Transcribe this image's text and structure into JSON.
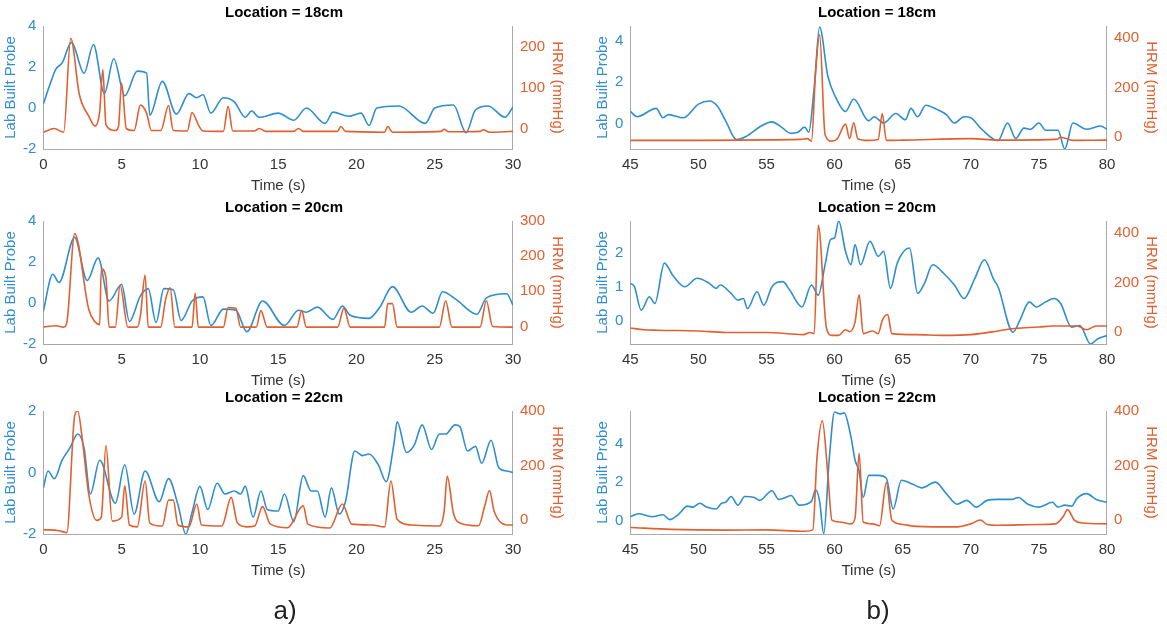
{
  "chart_data": [
    {
      "type": "line",
      "title": "Location = 18cm",
      "xlabel": "Time (s)",
      "ylabel": "Lab Built Probe",
      "y2label": "HRM (mmHg)",
      "xlim": [
        0,
        30
      ],
      "xticks": [
        0,
        5,
        10,
        15,
        20,
        25,
        30
      ],
      "ylim": [
        -2,
        4
      ],
      "yticks": [
        -2,
        0,
        2,
        4
      ],
      "y2lim": [
        -50,
        250
      ],
      "y2ticks": [
        0,
        100,
        200
      ],
      "legend": false,
      "grid": false,
      "series": [
        {
          "color": "#2e8ed0",
          "axis": "y",
          "x": [
            0,
            0.4,
            0.8,
            1.2,
            1.8,
            2.6,
            3.2,
            3.9,
            4.5,
            5.2,
            6.0,
            6.6,
            6.8,
            7.6,
            8.5,
            9.3,
            9.8,
            10.2,
            10.7,
            11.5,
            12.2,
            12.9,
            13.3,
            13.8,
            15,
            16,
            16.8,
            18,
            18.5,
            19.5,
            20.3,
            20.8,
            21.3,
            22.7,
            24.4,
            25,
            26.2,
            27,
            27.6,
            28.4,
            29.5,
            30
          ],
          "values": [
            0.2,
            1.1,
            1.9,
            2.2,
            3.2,
            1.7,
            3.1,
            0.7,
            2.4,
            0.6,
            1.8,
            1.7,
            -0.35,
            1.3,
            -0.3,
            0.7,
            0.5,
            0.65,
            -0.25,
            0.5,
            0.3,
            -0.45,
            -0.15,
            -0.45,
            -0.25,
            -0.6,
            0,
            -0.75,
            -0.2,
            -0.4,
            -0.25,
            -0.85,
            0,
            0.1,
            -0.75,
            0,
            0.15,
            -1.2,
            -0.1,
            0.1,
            -0.45,
            0.05
          ]
        },
        {
          "color": "#e06030",
          "axis": "y2",
          "x": [
            0,
            0.7,
            1.3,
            1.75,
            2.3,
            2.9,
            3.3,
            3.6,
            3.8,
            4.0,
            4.6,
            4.8,
            5.0,
            5.3,
            5.8,
            6.2,
            6.6,
            6.9,
            7.5,
            8.0,
            8.3,
            9.2,
            9.5,
            9.9,
            10.2,
            11.5,
            11.8,
            12.1,
            13.5,
            13.8,
            14.2,
            16,
            16.3,
            16.6,
            18.8,
            19.0,
            19.3,
            21.8,
            22.0,
            22.3,
            25.4,
            25.6,
            25.9,
            27.9,
            28.1,
            28.5,
            30
          ],
          "values": [
            -9,
            0,
            -9,
            220,
            83,
            30,
            6,
            42,
            144,
            9,
            -5,
            5,
            111,
            0,
            -5,
            57,
            37,
            -5,
            -5,
            56,
            -5,
            -6,
            39,
            9,
            -6,
            -7,
            54,
            -6,
            -6,
            0,
            -7,
            -7,
            0,
            -7,
            -7,
            5,
            -7,
            -9,
            5,
            -9,
            -7,
            -2,
            -8,
            -7,
            -3,
            -9,
            -7
          ]
        }
      ]
    },
    {
      "type": "line",
      "title": "Location = 20cm",
      "xlabel": "Time (s)",
      "ylabel": "Lab Built Probe",
      "y2label": "HRM (mmHg)",
      "xlim": [
        0,
        30
      ],
      "xticks": [
        0,
        5,
        10,
        15,
        20,
        25,
        30
      ],
      "ylim": [
        -2,
        4
      ],
      "yticks": [
        -2,
        0,
        2,
        4
      ],
      "y2lim": [
        -50,
        300
      ],
      "y2ticks": [
        0,
        100,
        200,
        300
      ],
      "legend": false,
      "grid": false,
      "series": [
        {
          "color": "#2e8ed0",
          "axis": "y",
          "x": [
            0,
            0.6,
            1.0,
            2.0,
            2.8,
            3.5,
            4.2,
            5.0,
            5.5,
            6.2,
            6.7,
            7.2,
            7.7,
            8.3,
            8.8,
            9.5,
            10.2,
            10.7,
            11.5,
            12.3,
            13.0,
            14.0,
            15.4,
            16.3,
            16.8,
            17.5,
            18.5,
            19.1,
            19.6,
            20.8,
            21.5,
            22.3,
            23.5,
            24.2,
            24.9,
            25.5,
            26.4,
            27.7,
            28.3,
            29.6,
            30
          ],
          "values": [
            -0.4,
            1.4,
            1.0,
            3.2,
            1.1,
            2.2,
            0.1,
            0.9,
            -0.9,
            0.35,
            0.7,
            -0.95,
            0.7,
            0.65,
            -0.85,
            0.1,
            0.3,
            -1.1,
            -0.3,
            -0.35,
            -1.4,
            0.1,
            -1.1,
            -0.35,
            -0.45,
            -0.2,
            -0.8,
            -0.15,
            -0.6,
            -0.75,
            -0.2,
            0.8,
            -0.45,
            -0.15,
            -0.5,
            0.55,
            0.15,
            -0.55,
            0.25,
            0.45,
            -0.1
          ]
        },
        {
          "color": "#e06030",
          "axis": "y2",
          "x": [
            0,
            0.8,
            1.3,
            1.5,
            2.0,
            2.9,
            3.3,
            3.6,
            3.7,
            4.0,
            4.2,
            4.6,
            4.9,
            5.4,
            6.0,
            6.2,
            6.5,
            6.7,
            7.5,
            7.8,
            8.1,
            8.4,
            9.5,
            9.7,
            9.9,
            11.5,
            11.8,
            12.3,
            12.6,
            13.6,
            13.9,
            14.3,
            16.2,
            16.5,
            16.8,
            18.8,
            19.2,
            19.6,
            21.8,
            22.0,
            22.3,
            22.6,
            25.3,
            25.7,
            26.1,
            27.9,
            28.3,
            28.7,
            30
          ],
          "values": [
            -2,
            2,
            -2,
            11,
            264,
            49,
            13,
            5,
            164,
            138,
            -2,
            -2,
            117,
            -2,
            -2,
            30,
            146,
            -2,
            -2,
            75,
            110,
            -2,
            -2,
            94,
            -2,
            -2,
            54,
            52,
            -2,
            -2,
            45,
            -2,
            -2,
            45,
            -2,
            -2,
            52,
            -2,
            -2,
            65,
            65,
            -2,
            -2,
            73,
            -2,
            -2,
            73,
            0,
            -2
          ]
        }
      ]
    },
    {
      "type": "line",
      "title": "Location = 22cm",
      "xlabel": "Time (s)",
      "ylabel": "Lab Built Probe",
      "y2label": "HRM (mmHg)",
      "xlim": [
        0,
        30
      ],
      "xticks": [
        0,
        5,
        10,
        15,
        20,
        25,
        30
      ],
      "ylim": [
        -2,
        2
      ],
      "yticks": [
        -2,
        0,
        2
      ],
      "y2lim": [
        -50,
        400
      ],
      "y2ticks": [
        0,
        200,
        400
      ],
      "legend": false,
      "grid": false,
      "annotations": [
        "a)"
      ],
      "series": [
        {
          "color": "#2e8ed0",
          "axis": "y",
          "x": [
            0,
            0.3,
            0.7,
            1.2,
            1.7,
            2.2,
            2.6,
            3.0,
            3.6,
            4.6,
            5.2,
            5.8,
            6.5,
            7.4,
            8.0,
            8.6,
            9.1,
            9.5,
            10.0,
            10.5,
            11.1,
            11.6,
            12.2,
            12.6,
            12.9,
            13.4,
            13.9,
            14.3,
            15.0,
            15.4,
            16.0,
            16.6,
            17.1,
            17.5,
            18.0,
            18.4,
            18.9,
            19.3,
            19.9,
            20.4,
            20.8,
            21.4,
            21.9,
            22.4,
            22.6,
            23.2,
            23.7,
            24.2,
            24.8,
            25.3,
            25.7,
            26.3,
            26.6,
            27.1,
            27.6,
            28.0,
            28.6,
            29.1,
            29.6,
            30
          ],
          "values": [
            -0.5,
            0.05,
            -0.2,
            0.4,
            0.8,
            1.25,
            0.8,
            -0.7,
            0.4,
            -1.0,
            0.25,
            -1.35,
            0.05,
            -0.95,
            -0.2,
            -1.05,
            -2.0,
            -1.3,
            -0.45,
            -1.2,
            -0.35,
            -0.7,
            -0.6,
            -0.7,
            -0.45,
            -1.45,
            -0.6,
            -1.2,
            -1.25,
            -0.7,
            -1.6,
            -0.1,
            -0.6,
            -0.6,
            -1.45,
            -0.5,
            -1.35,
            -0.95,
            0.7,
            0.55,
            0.6,
            0.25,
            -0.3,
            0.95,
            1.65,
            0.65,
            0.9,
            1.55,
            0.75,
            1.25,
            1.25,
            1.55,
            1.5,
            0.7,
            0.85,
            0.3,
            1.05,
            0.15,
            0.05,
            0
          ]
        },
        {
          "color": "#e06030",
          "axis": "y2",
          "x": [
            0,
            1.0,
            1.5,
            2.0,
            2.2,
            2.5,
            2.9,
            3.4,
            3.7,
            4.0,
            4.4,
            5.0,
            5.2,
            5.5,
            6.0,
            6.5,
            6.8,
            7.6,
            8.0,
            8.3,
            8.6,
            9.3,
            9.8,
            10.1,
            11.4,
            12.0,
            12.4,
            13.0,
            13.5,
            14.0,
            14.5,
            15.6,
            16.6,
            16.9,
            18.3,
            19.1,
            19.7,
            21.0,
            21.8,
            22.2,
            22.6,
            23.5,
            25.3,
            25.6,
            25.8,
            26.2,
            26.6,
            27.8,
            28.2,
            28.5,
            28.8,
            29.6,
            30
          ],
          "values": [
            -34,
            -38,
            -45,
            382,
            400,
            291,
            95,
            0,
            11,
            274,
            -3,
            11,
            126,
            -17,
            -24,
            144,
            -10,
            -21,
            74,
            74,
            -17,
            -24,
            60,
            -17,
            -21,
            84,
            -10,
            -24,
            -21,
            50,
            -14,
            -27,
            53,
            -14,
            -28,
            60,
            -14,
            -17,
            -24,
            144,
            4,
            -17,
            -21,
            32,
            161,
            25,
            -10,
            -20,
            53,
            109,
            32,
            -17,
            -17
          ]
        }
      ]
    },
    {
      "type": "line",
      "title": "Location = 18cm",
      "xlabel": "Time (s)",
      "ylabel": "Lab Built Probe",
      "y2label": "HRM (mmHg)",
      "xlim": [
        45,
        80
      ],
      "xticks": [
        45,
        50,
        55,
        60,
        65,
        70,
        75,
        80
      ],
      "ylim": [
        -1.2,
        4.7
      ],
      "yticks": [
        0,
        2,
        4
      ],
      "y2lim": [
        -50,
        450
      ],
      "y2ticks": [
        0,
        200,
        400
      ],
      "legend": false,
      "grid": false,
      "series": [
        {
          "color": "#2e8ed0",
          "axis": "y",
          "x": [
            45,
            45.5,
            46.9,
            47.4,
            47.8,
            48.9,
            50,
            50.8,
            51.4,
            52,
            52.8,
            53.5,
            54.6,
            55.4,
            56,
            56.8,
            57.3,
            57.8,
            58.1,
            58.5,
            58.9,
            59.5,
            60.1,
            60.8,
            61.4,
            62.5,
            62.9,
            63.6,
            64.5,
            65.2,
            65.6,
            66.1,
            66.7,
            67.5,
            68.2,
            68.8,
            69.5,
            70.0,
            70.8,
            72.0,
            72.7,
            73.3,
            73.9,
            74.4,
            75.0,
            75.5,
            76.4,
            76.9,
            77.5,
            78.5,
            79.5,
            80
          ],
          "values": [
            0.6,
            0.35,
            0.75,
            0.3,
            0.45,
            0.3,
            0.95,
            1.1,
            0.85,
            0.15,
            -0.75,
            -0.6,
            -0.1,
            0.1,
            -0.1,
            -0.45,
            -0.4,
            -0.15,
            -0.4,
            1.75,
            4.65,
            2.3,
            1.25,
            0.6,
            1.2,
            0.15,
            0.35,
            0.05,
            0.5,
            0.2,
            0.75,
            0.35,
            0.9,
            0.7,
            0.45,
            0.05,
            0.35,
            0.3,
            -0.25,
            -0.8,
            0.05,
            -0.7,
            -0.2,
            -0.25,
            0.05,
            -0.3,
            -0.3,
            -1.2,
            0.05,
            -0.25,
            -0.1,
            -0.25
          ]
        },
        {
          "color": "#e06030",
          "axis": "y2",
          "x": [
            45,
            57.5,
            58.0,
            58.3,
            58.6,
            58.9,
            59.3,
            59.8,
            60.2,
            60.8,
            61.1,
            61.4,
            61.7,
            62.5,
            63.2,
            63.5,
            63.8,
            65,
            70,
            72,
            76.3,
            76.6,
            77.5,
            80
          ],
          "values": [
            -15,
            -11,
            -8,
            -18,
            258,
            415,
            8,
            -18,
            -8,
            51,
            -8,
            57,
            -8,
            -15,
            -11,
            94,
            -15,
            -14,
            -8,
            -14,
            -11,
            -2,
            -15,
            -14
          ]
        }
      ]
    },
    {
      "type": "line",
      "title": "Location = 20cm",
      "xlabel": "Time (s)",
      "ylabel": "Lab Built Probe",
      "y2label": "HRM (mmHg)",
      "xlim": [
        45,
        80
      ],
      "xticks": [
        45,
        50,
        55,
        60,
        65,
        70,
        75,
        80
      ],
      "ylim": [
        -0.7,
        2.95
      ],
      "yticks": [
        0,
        1,
        2
      ],
      "y2lim": [
        -50,
        450
      ],
      "y2ticks": [
        0,
        200,
        400
      ],
      "legend": false,
      "grid": false,
      "series": [
        {
          "color": "#2e8ed0",
          "axis": "y",
          "x": [
            45,
            45.3,
            45.8,
            46.4,
            46.8,
            47.5,
            48.1,
            49.0,
            49.9,
            50.8,
            51.3,
            51.6,
            52.4,
            52.9,
            53.3,
            53.6,
            54.3,
            54.8,
            55.4,
            56.2,
            56.7,
            57.6,
            58.3,
            58.8,
            59.3,
            59.7,
            60.0,
            60.3,
            60.8,
            61.2,
            61.5,
            61.9,
            62.6,
            63.2,
            63.6,
            64.1,
            64.6,
            65.5,
            66.1,
            66.6,
            67.2,
            68,
            68.8,
            69.5,
            70.3,
            71.0,
            71.7,
            72.0,
            73.1,
            73.6,
            74.3,
            74.8,
            75.5,
            76.1,
            76.6,
            77.4,
            78.0,
            78.8,
            79.3,
            80
          ],
          "values": [
            1.1,
            1.0,
            0.3,
            0.7,
            0.5,
            1.7,
            1.35,
            1.0,
            1.25,
            1.1,
            0.95,
            1.05,
            0.8,
            0.6,
            0.65,
            0.35,
            0.85,
            0.45,
            1.0,
            1.15,
            0.9,
            0.4,
            1.05,
            0.75,
            1.65,
            2.4,
            2.45,
            2.95,
            2.05,
            1.65,
            2.25,
            1.65,
            2.35,
            1.9,
            2.05,
            0.95,
            1.7,
            2.15,
            0.8,
            1.1,
            1.65,
            1.4,
            1.05,
            0.65,
            1.25,
            1.8,
            1.2,
            1.0,
            -0.35,
            0,
            0.55,
            0.4,
            0.55,
            0.65,
            0.5,
            -0.2,
            -0.15,
            -0.7,
            -0.55,
            -0.45
          ]
        },
        {
          "color": "#e06030",
          "axis": "y2",
          "x": [
            45,
            46,
            47,
            50,
            52,
            55,
            57.7,
            58.2,
            58.5,
            58.8,
            59.4,
            59.8,
            60.3,
            60.8,
            61.1,
            61.5,
            61.8,
            62.1,
            62.8,
            63.2,
            63.5,
            63.9,
            64.2,
            66,
            68,
            70,
            72,
            73,
            75,
            76,
            77,
            77.8,
            78.5,
            79.2,
            80
          ],
          "values": [
            15,
            8,
            6,
            3,
            -3,
            -3,
            -12,
            -3,
            -8,
            433,
            15,
            -15,
            -15,
            8,
            0,
            39,
            150,
            -8,
            3,
            -8,
            46,
            70,
            -8,
            -12,
            -15,
            -12,
            3,
            12,
            19,
            23,
            23,
            23,
            8,
            23,
            23
          ]
        }
      ]
    },
    {
      "type": "line",
      "title": "Location = 22cm",
      "xlabel": "Time (s)",
      "ylabel": "Lab Built Probe",
      "y2label": "HRM (mmHg)",
      "xlim": [
        45,
        80
      ],
      "xticks": [
        45,
        50,
        55,
        60,
        65,
        70,
        75,
        80
      ],
      "ylim": [
        -0.7,
        5.7
      ],
      "yticks": [
        0,
        2,
        4
      ],
      "y2lim": [
        -50,
        400
      ],
      "y2ticks": [
        0,
        200,
        400
      ],
      "legend": false,
      "grid": false,
      "annotations": [
        "b)"
      ],
      "series": [
        {
          "color": "#2e8ed0",
          "axis": "y",
          "x": [
            45,
            45.6,
            46.6,
            47.4,
            47.9,
            48.5,
            49.2,
            49.6,
            50.1,
            50.6,
            51.3,
            51.7,
            52.0,
            52.4,
            52.9,
            53.4,
            54.1,
            54.5,
            55.4,
            55.9,
            56.2,
            56.8,
            57.4,
            58.3,
            58.6,
            58.9,
            59.2,
            59.6,
            60,
            60.4,
            60.7,
            61.2,
            61.5,
            61.8,
            62.1,
            62.5,
            63.2,
            63.8,
            64.3,
            64.9,
            65.7,
            66.4,
            67.4,
            68.2,
            69,
            69.7,
            70.4,
            71.2,
            72,
            73,
            73.5,
            74.2,
            75,
            76.0,
            76.4,
            76.9,
            77.4,
            77.8,
            78.5,
            79.2,
            80
          ],
          "values": [
            0.2,
            0.35,
            0.2,
            0.3,
            0.05,
            0.3,
            0.75,
            0.7,
            0.9,
            0.7,
            0.6,
            0.9,
            0.95,
            1.25,
            0.8,
            1.25,
            1.2,
            1.05,
            1.55,
            1.1,
            1.15,
            1.3,
            0.8,
            1.0,
            1.6,
            1.0,
            -0.7,
            3.15,
            5.65,
            5.55,
            5.6,
            4.35,
            3.15,
            2.55,
            1.2,
            2.35,
            2.35,
            2.2,
            0.6,
            2.1,
            1.9,
            1.7,
            2.0,
            1.4,
            0.85,
            1.05,
            0.7,
            1.05,
            1.1,
            1.1,
            1.2,
            0.85,
            0.7,
            0.95,
            0.7,
            0.8,
            0.75,
            1.15,
            1.4,
            1.1,
            0.95
          ]
        },
        {
          "color": "#e06030",
          "axis": "y2",
          "x": [
            45,
            48,
            52,
            55,
            57.8,
            58.4,
            58.7,
            59.1,
            59.5,
            59.8,
            60.4,
            61.2,
            61.5,
            61.8,
            62.1,
            62.8,
            63.3,
            63.8,
            64.2,
            65,
            66,
            69,
            70.0,
            70.7,
            71.2,
            72,
            75,
            76.2,
            76.8,
            77.1,
            77.6,
            78.2,
            80
          ],
          "values": [
            -26,
            -33,
            -36,
            -35,
            -40,
            -35,
            225,
            364,
            169,
            1,
            -6,
            -13,
            8,
            245,
            -6,
            -13,
            -20,
            138,
            1,
            -15,
            -22,
            -24,
            -13,
            1,
            -15,
            -18,
            -15,
            -13,
            15,
            39,
            1,
            -10,
            -13
          ]
        }
      ]
    }
  ]
}
